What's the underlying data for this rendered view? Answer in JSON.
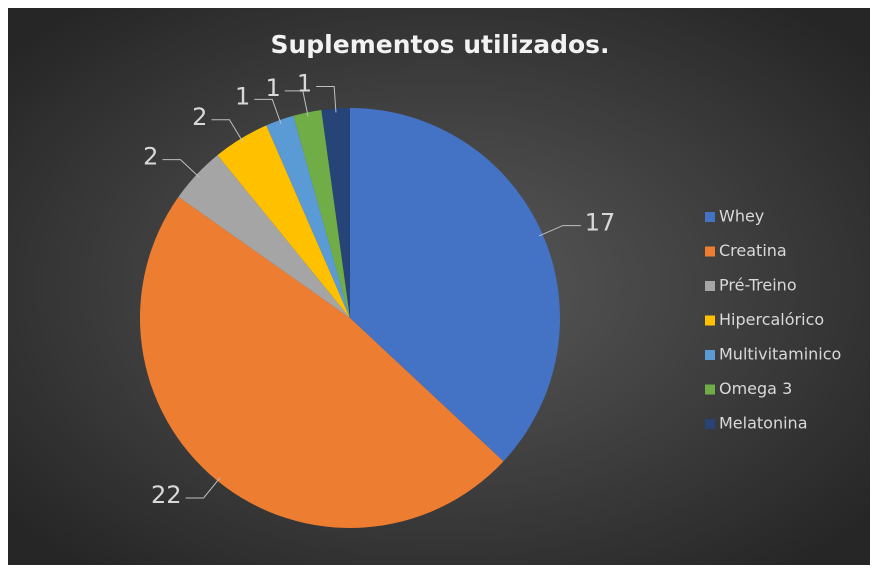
{
  "chart_data": {
    "type": "pie",
    "title": "Suplementos utilizados.",
    "categories": [
      "Whey",
      "Creatina",
      "Pré-Treino",
      "Hipercalórico",
      "Multivitaminico",
      "Omega 3",
      "Melatonina"
    ],
    "values": [
      17,
      22,
      2,
      2,
      1,
      1,
      1
    ],
    "colors": [
      "#4472c4",
      "#ed7d31",
      "#a5a5a5",
      "#ffc000",
      "#5b9bd5",
      "#70ad47",
      "#264478"
    ],
    "legend": "right"
  }
}
